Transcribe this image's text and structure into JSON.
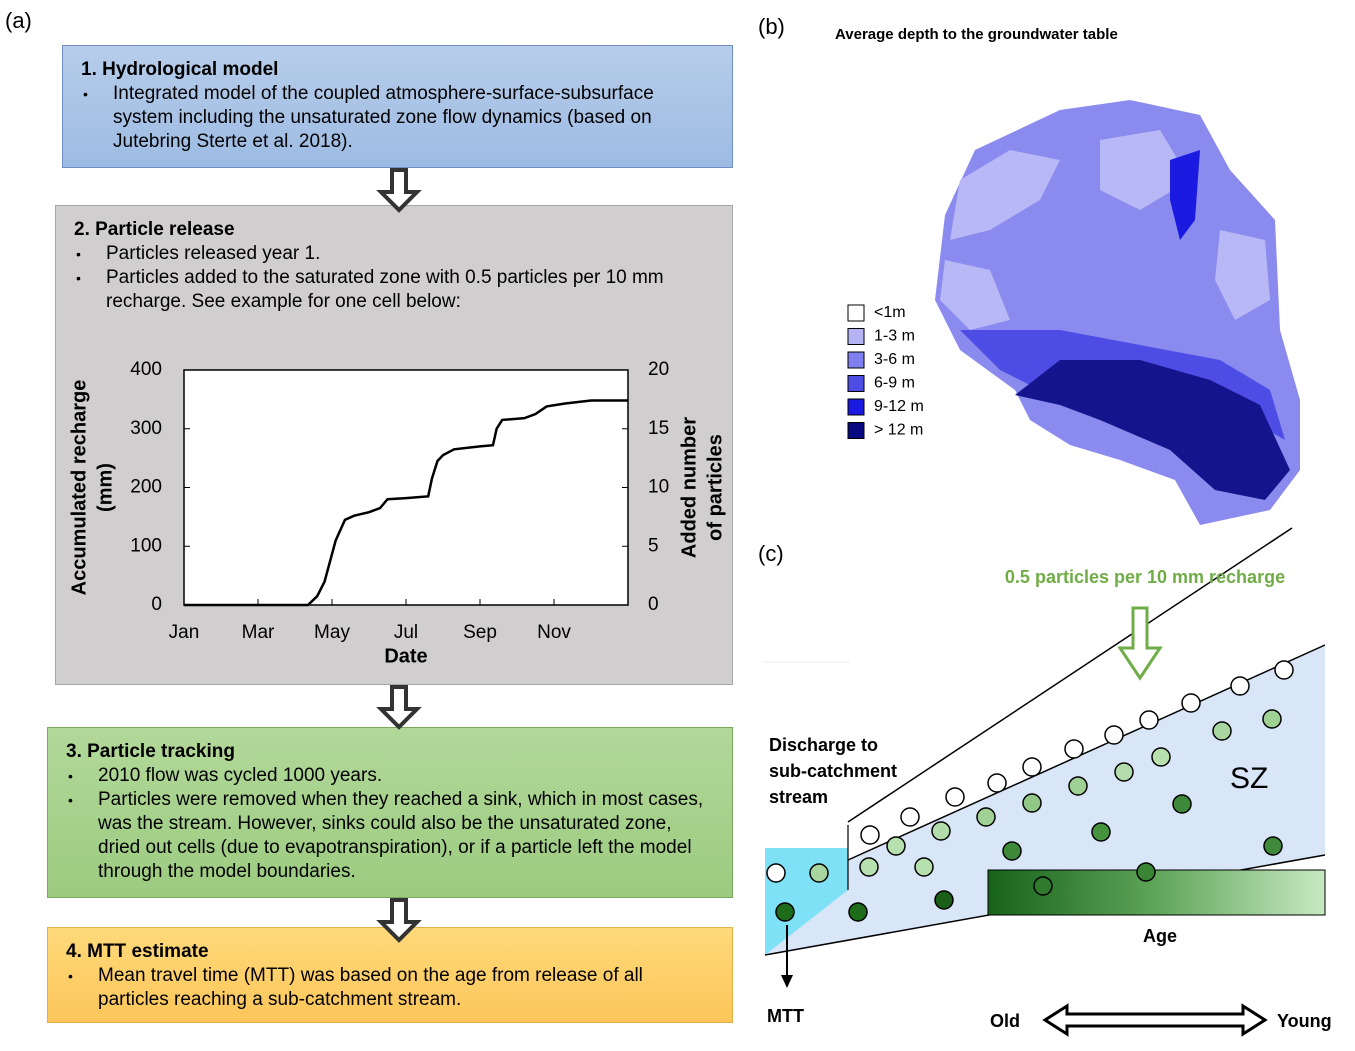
{
  "panel_labels": [
    "(a)",
    "(b)",
    "(c)"
  ],
  "steps": [
    {
      "title": "1. Hydrological model",
      "bullets": [
        "Integrated model of the coupled atmosphere-surface-subsurface system including the unsaturated zone flow dynamics (based on Jutebring Sterte et al. 2018)."
      ]
    },
    {
      "title": "2. Particle release",
      "bullets": [
        "Particles released year 1.",
        "Particles added to the saturated zone with 0.5 particles per 10 mm recharge. See example for one cell below:"
      ]
    },
    {
      "title": "3. Particle tracking",
      "bullets": [
        "2010 flow was cycled 1000 years.",
        "Particles were removed when they reached a sink, which in most cases, was the stream. However, sinks could also be the unsaturated zone, dried out cells (due to evapotranspiration), or if a particle left the model through the model boundaries."
      ]
    },
    {
      "title": "4. MTT estimate",
      "bullets": [
        "Mean travel time (MTT) was based on the age from release of all particles reaching a sub-catchment stream."
      ]
    }
  ],
  "chart_data": {
    "type": "line",
    "xlabel": "Date",
    "ylabel": [
      "Accumulated recharge",
      "(mm)"
    ],
    "y2label": [
      "Added number",
      "of particles"
    ],
    "xlim": [
      0,
      12
    ],
    "xticks": [
      {
        "value": 0,
        "label": "Jan"
      },
      {
        "value": 2,
        "label": "Mar"
      },
      {
        "value": 4,
        "label": "May"
      },
      {
        "value": 6,
        "label": "Jul"
      },
      {
        "value": 8,
        "label": "Sep"
      },
      {
        "value": 10,
        "label": "Nov"
      }
    ],
    "ylim": [
      0,
      400
    ],
    "yticks": [
      0,
      100,
      200,
      300,
      400
    ],
    "y2lim": [
      0,
      20
    ],
    "y2ticks": [
      0,
      5,
      10,
      15,
      20
    ],
    "series": [
      {
        "color": "#000000",
        "x": [
          0,
          3.35,
          3.6,
          3.8,
          3.95,
          4.1,
          4.35,
          4.6,
          5.0,
          5.3,
          5.5,
          6.0,
          6.6,
          6.7,
          6.85,
          7.0,
          7.3,
          8.0,
          8.35,
          8.45,
          8.6,
          9.2,
          9.5,
          9.8,
          10.3,
          11.0,
          12
        ],
        "values": [
          0,
          0,
          15,
          40,
          75,
          110,
          145,
          152,
          158,
          165,
          180,
          182,
          185,
          215,
          245,
          255,
          265,
          270,
          272,
          300,
          315,
          318,
          325,
          338,
          343,
          348,
          348
        ]
      }
    ]
  },
  "map": {
    "title": "Average depth to the groundwater table",
    "legend": [
      {
        "label": "<1m",
        "color": "#ffffff"
      },
      {
        "label": "1-3 m",
        "color": "#b3b3f5"
      },
      {
        "label": "3-6 m",
        "color": "#8080ee"
      },
      {
        "label": "6-9 m",
        "color": "#4d4de6"
      },
      {
        "label": "9-12 m",
        "color": "#1a1ae0"
      },
      {
        "label": "> 12 m",
        "color": "#0a0a80"
      }
    ]
  },
  "diagram": {
    "recharge_label": "0.5 particles per 10 mm recharge",
    "discharge_label": [
      "Discharge to",
      "sub-catchment",
      "stream"
    ],
    "zone_label": "SZ",
    "age_label": "Age",
    "outlet_label": "MTT",
    "old_label": "Old",
    "young_label": "Young"
  }
}
